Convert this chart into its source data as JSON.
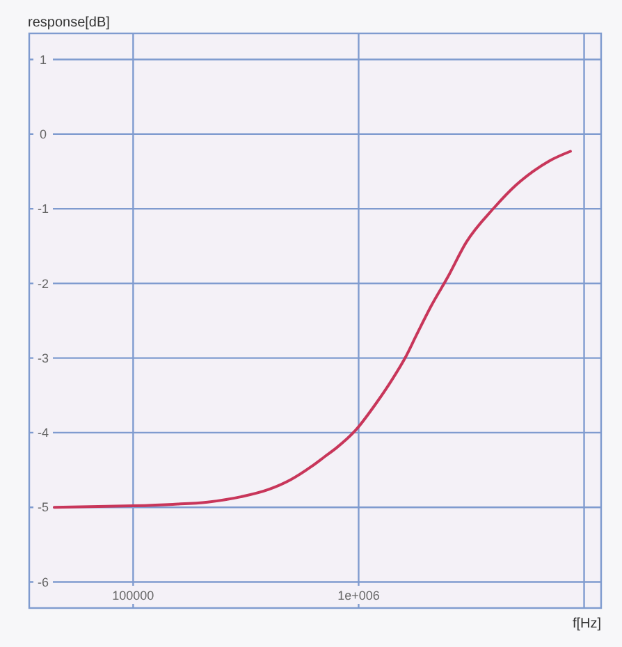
{
  "chart_data": {
    "type": "line",
    "xlabel": "f[Hz]",
    "ylabel": "response[dB]",
    "log": "x",
    "grid": true,
    "xlim": [
      34600,
      11900000
    ],
    "ylim": [
      -6.35,
      1.35
    ],
    "xticks": [
      100000,
      {
        "value": 1000000,
        "label": "1e+006"
      },
      {
        "value": 10000000,
        "label": null
      }
    ],
    "yticks": [
      -6,
      -5,
      -4,
      -3,
      -2,
      -1,
      0,
      1
    ],
    "x": [
      44700,
      70000,
      100000,
      150000,
      214000,
      300000,
      400000,
      500000,
      620000,
      708000,
      800000,
      968000,
      1200000,
      1400000,
      1620000,
      1800000,
      2100000,
      2480000,
      3000000,
      3980000,
      5000000,
      6000000,
      7000000,
      8700000
    ],
    "series": [
      {
        "color": "#c8365a",
        "values": [
          -5.0,
          -4.99,
          -4.98,
          -4.96,
          -4.93,
          -4.86,
          -4.76,
          -4.63,
          -4.45,
          -4.32,
          -4.2,
          -3.97,
          -3.6,
          -3.3,
          -2.98,
          -2.7,
          -2.3,
          -1.92,
          -1.45,
          -0.99,
          -0.68,
          -0.49,
          -0.36,
          -0.23
        ]
      }
    ]
  }
}
